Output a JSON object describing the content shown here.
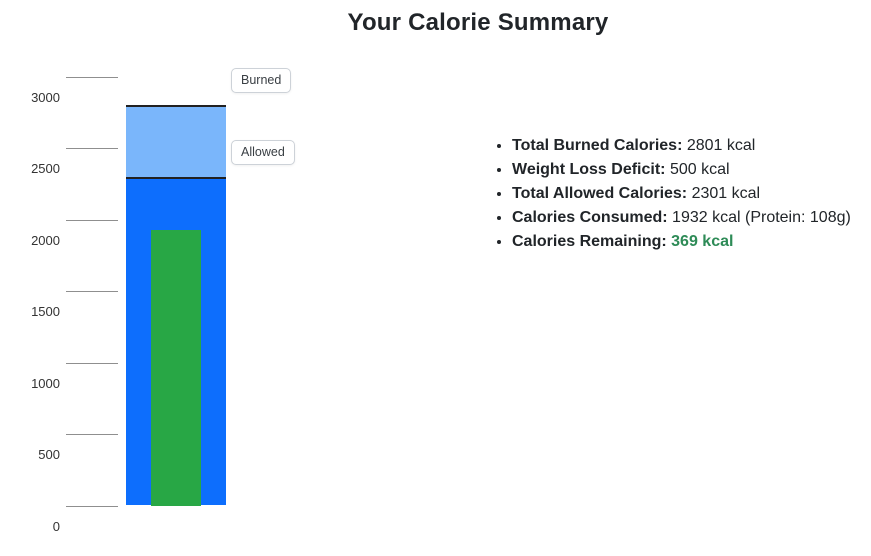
{
  "title": "Your Calorie Summary",
  "chart_data": {
    "type": "bar",
    "title": "Your Calorie Summary",
    "xlabel": "",
    "ylabel": "",
    "ylim": [
      0,
      3000
    ],
    "yticks": [
      0,
      500,
      1000,
      1500,
      2000,
      2500,
      3000
    ],
    "grid": false,
    "series": [
      {
        "name": "Burned",
        "value": 2801,
        "color": "#7ab6fb"
      },
      {
        "name": "Allowed",
        "value": 2301,
        "color": "#0d6efd"
      },
      {
        "name": "Consumed",
        "value": 1932,
        "color": "#28a745"
      }
    ],
    "annotations": [
      {
        "label": "Burned"
      },
      {
        "label": "Allowed"
      }
    ],
    "segment_divider_color": "#212121"
  },
  "summary": {
    "highlight_color": "#2e8b57",
    "items": [
      {
        "label": "Total Burned Calories:",
        "value": "2801 kcal"
      },
      {
        "label": "Weight Loss Deficit:",
        "value": "500 kcal"
      },
      {
        "label": "Total Allowed Calories:",
        "value": "2301 kcal"
      },
      {
        "label": "Calories Consumed:",
        "value": "1932 kcal (Protein: 108g)"
      },
      {
        "label": "Calories Remaining:",
        "value": "369 kcal",
        "highlight": true
      }
    ]
  }
}
